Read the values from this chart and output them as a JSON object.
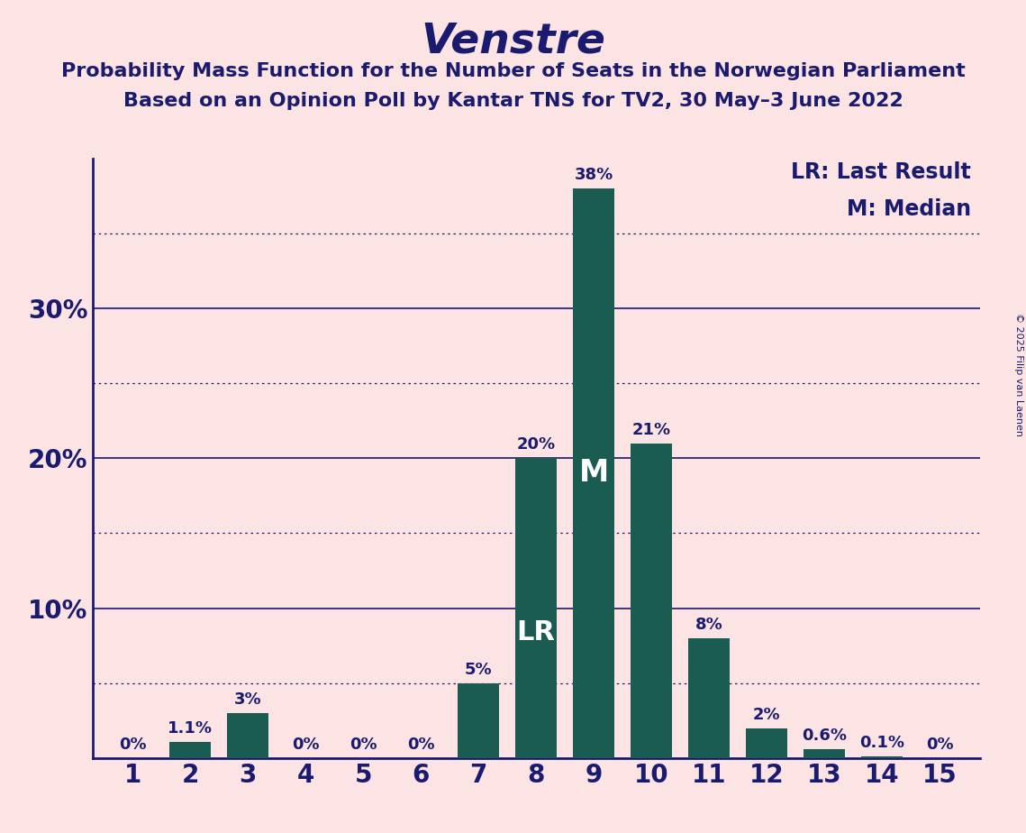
{
  "title": "Venstre",
  "subtitle1": "Probability Mass Function for the Number of Seats in the Norwegian Parliament",
  "subtitle2": "Based on an Opinion Poll by Kantar TNS for TV2, 30 May–3 June 2022",
  "copyright": "© 2025 Filip van Laenen",
  "seats": [
    1,
    2,
    3,
    4,
    5,
    6,
    7,
    8,
    9,
    10,
    11,
    12,
    13,
    14,
    15
  ],
  "values": [
    0.0,
    1.1,
    3.0,
    0.0,
    0.0,
    0.0,
    5.0,
    20.0,
    38.0,
    21.0,
    8.0,
    2.0,
    0.6,
    0.1,
    0.0
  ],
  "bar_labels": [
    "0%",
    "1.1%",
    "3%",
    "0%",
    "0%",
    "0%",
    "5%",
    "20%",
    "38%",
    "21%",
    "8%",
    "2%",
    "0.6%",
    "0.1%",
    "0%"
  ],
  "bar_color": "#1a5c52",
  "background_color": "#fce4e4",
  "text_color": "#1a1a6e",
  "lr_seat": 8,
  "median_seat": 9,
  "ylim": [
    0,
    40
  ],
  "yticks": [
    10,
    20,
    30
  ],
  "ytick_labels": [
    "10%",
    "20%",
    "30%"
  ],
  "dotted_grid_levels": [
    5,
    15,
    25,
    35
  ],
  "solid_grid_levels": [
    10,
    20,
    30
  ],
  "lr_label": "LR",
  "median_label": "M",
  "legend_lr": "LR: Last Result",
  "legend_m": "M: Median",
  "title_fontsize": 34,
  "subtitle_fontsize": 16,
  "axis_tick_fontsize": 20,
  "bar_label_fontsize": 13,
  "legend_fontsize": 17,
  "bar_annotation_fontsize_lr": 22,
  "bar_annotation_fontsize_m": 24,
  "copyright_fontsize": 8
}
